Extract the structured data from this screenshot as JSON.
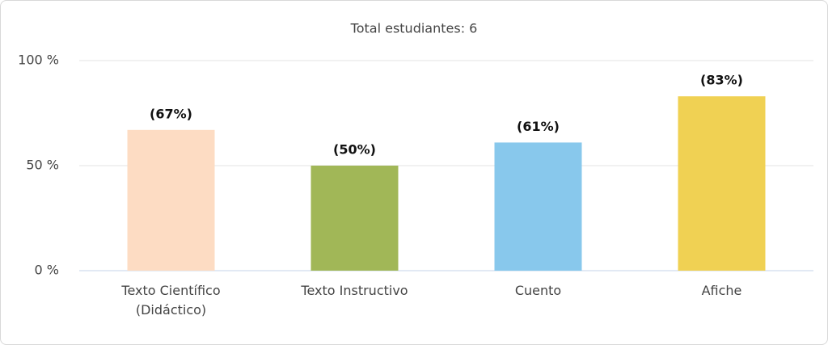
{
  "chart_data": {
    "type": "bar",
    "title": "Total estudiantes: 6",
    "categories": [
      "Texto Científico (Didáctico)",
      "Texto Instructivo",
      "Cuento",
      "Afiche"
    ],
    "values": [
      67,
      50,
      61,
      83
    ],
    "value_labels": [
      "(67%)",
      "(50%)",
      "(61%)",
      "(83%)"
    ],
    "colors": [
      "#fddcc3",
      "#a1b757",
      "#88c8ec",
      "#f0d153"
    ],
    "ylim": [
      0,
      100
    ],
    "yticks": [
      {
        "value": 0,
        "label": "0 %"
      },
      {
        "value": 50,
        "label": "50 %"
      },
      {
        "value": 100,
        "label": "100 %"
      }
    ],
    "grid": true
  }
}
